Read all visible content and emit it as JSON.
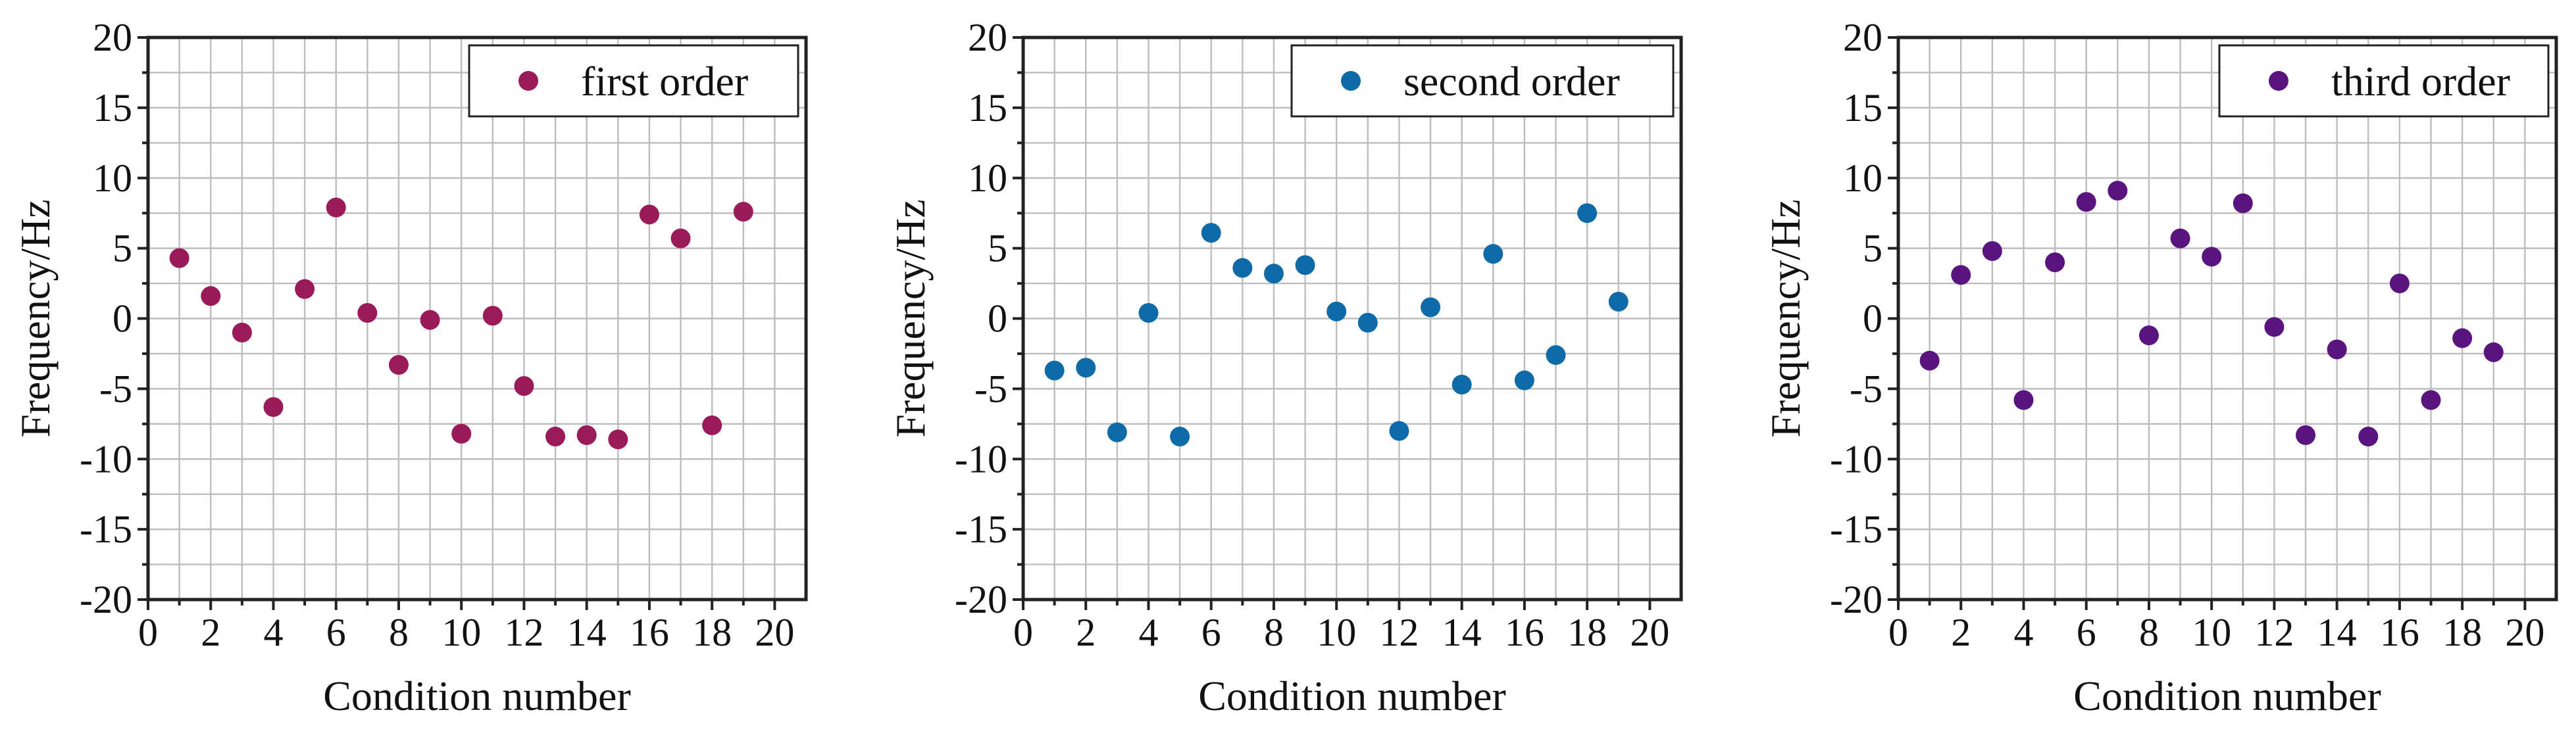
{
  "chart_data": [
    {
      "type": "scatter",
      "xlabel": "Condition number",
      "ylabel": "Frequency/Hz",
      "xlim": [
        0,
        21
      ],
      "ylim": [
        -20,
        20
      ],
      "xticks": [
        0,
        2,
        4,
        6,
        8,
        10,
        12,
        14,
        16,
        18,
        20
      ],
      "yticks": [
        -20,
        -15,
        -10,
        -5,
        0,
        5,
        10,
        15,
        20
      ],
      "grid": true,
      "legend_position": "top-right",
      "series": [
        {
          "name": "first order",
          "color": "#9b1a5a",
          "x": [
            1,
            2,
            3,
            4,
            5,
            6,
            7,
            8,
            9,
            10,
            11,
            12,
            13,
            14,
            15,
            16,
            17,
            18,
            19
          ],
          "y": [
            4.3,
            1.6,
            -1.0,
            -6.3,
            2.1,
            7.9,
            0.4,
            -3.3,
            -0.1,
            -8.2,
            0.2,
            -4.8,
            -8.4,
            -8.3,
            -8.6,
            7.4,
            5.7,
            -7.6,
            7.6
          ]
        }
      ]
    },
    {
      "type": "scatter",
      "xlabel": "Condition number",
      "ylabel": "Frequency/Hz",
      "xlim": [
        0,
        21
      ],
      "ylim": [
        -20,
        20
      ],
      "xticks": [
        0,
        2,
        4,
        6,
        8,
        10,
        12,
        14,
        16,
        18,
        20
      ],
      "yticks": [
        -20,
        -15,
        -10,
        -5,
        0,
        5,
        10,
        15,
        20
      ],
      "grid": true,
      "legend_position": "top-right",
      "series": [
        {
          "name": "second order",
          "color": "#0e6ba8",
          "x": [
            1,
            2,
            3,
            4,
            5,
            6,
            7,
            8,
            9,
            10,
            11,
            12,
            13,
            14,
            15,
            16,
            17,
            18,
            19
          ],
          "y": [
            -3.7,
            -3.5,
            -8.1,
            0.4,
            -8.4,
            6.1,
            3.6,
            3.2,
            3.8,
            0.5,
            -0.3,
            -8.0,
            0.8,
            -4.7,
            4.6,
            -4.4,
            -2.6,
            7.5,
            1.2
          ]
        }
      ]
    },
    {
      "type": "scatter",
      "xlabel": "Condition number",
      "ylabel": "Frequency/Hz",
      "xlim": [
        0,
        21
      ],
      "ylim": [
        -20,
        20
      ],
      "xticks": [
        0,
        2,
        4,
        6,
        8,
        10,
        12,
        14,
        16,
        18,
        20
      ],
      "yticks": [
        -20,
        -15,
        -10,
        -5,
        0,
        5,
        10,
        15,
        20
      ],
      "grid": true,
      "legend_position": "top-right",
      "series": [
        {
          "name": "third order",
          "color": "#5a1480",
          "x": [
            1,
            2,
            3,
            4,
            5,
            6,
            7,
            8,
            9,
            10,
            11,
            12,
            13,
            14,
            15,
            16,
            17,
            18,
            19
          ],
          "y": [
            -3.0,
            3.1,
            4.8,
            -5.8,
            4.0,
            8.3,
            9.1,
            -1.2,
            5.7,
            4.4,
            8.2,
            -0.6,
            -8.3,
            -2.2,
            -8.4,
            2.5,
            -5.8,
            -1.4,
            -2.4
          ]
        }
      ]
    }
  ]
}
